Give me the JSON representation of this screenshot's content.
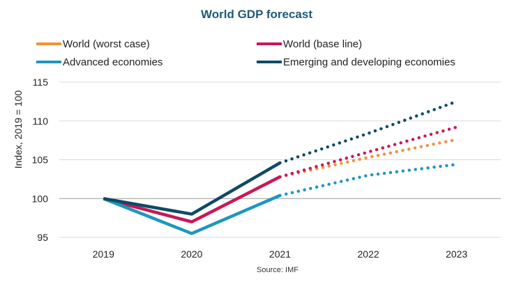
{
  "chart_data": {
    "type": "line",
    "title": "World GDP forecast",
    "ylabel": "Index, 2019 = 100",
    "xlabel": "",
    "x": [
      "2019",
      "2020",
      "2021",
      "2022",
      "2023"
    ],
    "ylim": [
      95,
      115
    ],
    "yticks": [
      95,
      100,
      105,
      110,
      115
    ],
    "grid": true,
    "actual_through": "2021",
    "source": "Source: IMF",
    "series": [
      {
        "name": "World (worst case)",
        "color": "#f0923b",
        "values": [
          100,
          97,
          102.8,
          105.3,
          107.6
        ]
      },
      {
        "name": "World (base line)",
        "color": "#c8185a",
        "values": [
          100,
          97,
          102.8,
          106,
          109.2
        ]
      },
      {
        "name": "Advanced economies",
        "color": "#1b97c0",
        "values": [
          100,
          95.5,
          100.4,
          103,
          104.4
        ]
      },
      {
        "name": "Emerging and developing economies",
        "color": "#0f4a66",
        "values": [
          100,
          98,
          104.6,
          108.4,
          112.5
        ]
      }
    ]
  }
}
